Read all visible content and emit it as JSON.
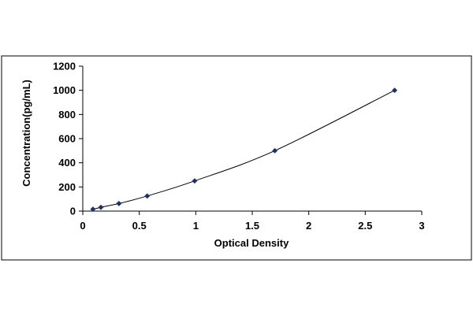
{
  "chart_data": {
    "type": "scatter",
    "title": "",
    "xlabel": "Optical Density",
    "ylabel": "Concentration(pg/mL)",
    "xlim": [
      0,
      3
    ],
    "ylim": [
      0,
      1200
    ],
    "x_ticks": [
      0,
      0.5,
      1,
      1.5,
      2,
      2.5,
      3
    ],
    "x_tick_labels": [
      "0",
      "0.5",
      "1",
      "1.5",
      "2",
      "2.5",
      "3"
    ],
    "y_ticks": [
      0,
      200,
      400,
      600,
      800,
      1000,
      1200
    ],
    "y_tick_labels": [
      "0",
      "200",
      "400",
      "600",
      "800",
      "1000",
      "1200"
    ],
    "grid": false,
    "legend": "none",
    "marker_color": "#1f2f6e",
    "line_color": "#000000",
    "series": [
      {
        "x": [
          0.09,
          0.16,
          0.32,
          0.57,
          0.99,
          1.7,
          2.76
        ],
        "y": [
          15.6,
          31.2,
          62.5,
          125,
          250,
          500,
          1000
        ],
        "trendline": "smooth"
      }
    ]
  }
}
